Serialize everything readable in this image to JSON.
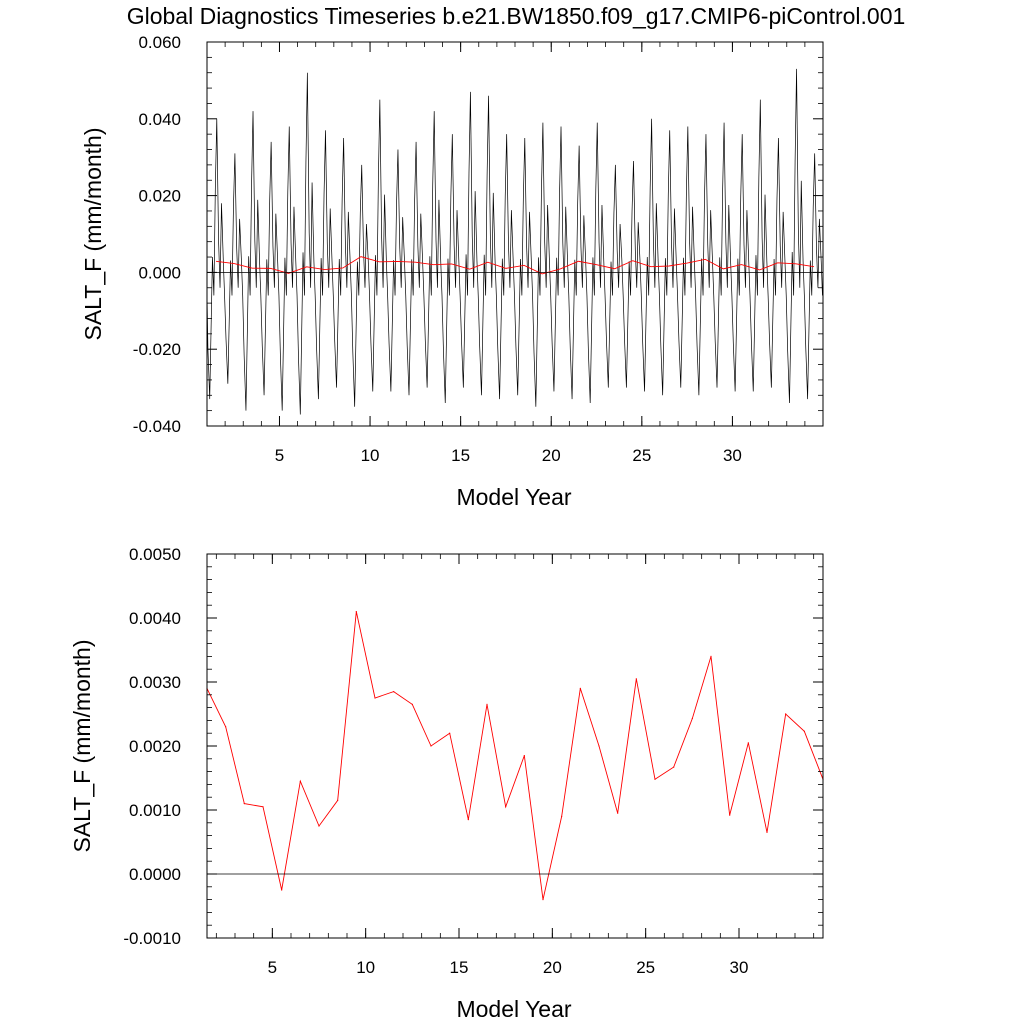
{
  "title": "Global Diagnostics Timeseries b.e21.BW1850.f09_g17.CMIP6-piControl.001",
  "colors": {
    "annual": "#ff0000",
    "monthly": "#000000",
    "zero_line": "#000000",
    "frame": "#000000"
  },
  "chart_data": [
    {
      "type": "line",
      "panel": "top",
      "xlabel": "Model Year",
      "ylabel": "SALT_F (mm/month)",
      "xlim": [
        1,
        35
      ],
      "ylim": [
        -0.04,
        0.06
      ],
      "xticks": [
        5,
        10,
        15,
        20,
        25,
        30
      ],
      "xtick_labels": [
        "5",
        "10",
        "15",
        "20",
        "25",
        "30"
      ],
      "yticks": [
        -0.04,
        -0.02,
        0.0,
        0.02,
        0.04,
        0.06
      ],
      "ytick_labels": [
        "-0.040",
        "-0.020",
        "0.000",
        "0.020",
        "0.040",
        "0.060"
      ],
      "reference_line": 0.0,
      "monthly_series": {
        "description_source": "black monthly line oscillating with seasonal cycle",
        "peaks": [
          0.04,
          0.031,
          0.042,
          0.034,
          0.038,
          0.052,
          0.037,
          0.035,
          0.028,
          0.045,
          0.032,
          0.034,
          0.042,
          0.036,
          0.047,
          0.046,
          0.036,
          0.035,
          0.039,
          0.038,
          0.033,
          0.039,
          0.028,
          0.029,
          0.04,
          0.037,
          0.038,
          0.036,
          0.039,
          0.036,
          0.045,
          0.035,
          0.053,
          0.031,
          0.041
        ],
        "troughs": [
          -0.033,
          -0.029,
          -0.036,
          -0.032,
          -0.036,
          -0.037,
          -0.033,
          -0.03,
          -0.035,
          -0.031,
          -0.031,
          -0.032,
          -0.03,
          -0.034,
          -0.03,
          -0.032,
          -0.033,
          -0.032,
          -0.035,
          -0.031,
          -0.033,
          -0.034,
          -0.03,
          -0.03,
          -0.031,
          -0.032,
          -0.03,
          -0.032,
          -0.03,
          -0.031,
          -0.031,
          -0.03,
          -0.034,
          -0.033,
          -0.038
        ]
      },
      "series": [
        {
          "values_x": [
            1.5,
            2.5,
            3.5,
            4.5,
            5.5,
            6.5,
            7.5,
            8.5,
            9.5,
            10.5,
            11.5,
            12.5,
            13.5,
            14.5,
            15.5,
            16.5,
            17.5,
            18.5,
            19.5,
            20.5,
            21.5,
            22.5,
            23.5,
            24.5,
            25.5,
            26.5,
            27.5,
            28.5,
            29.5,
            30.5,
            31.5,
            32.5,
            33.5,
            34.5
          ],
          "values": [
            0.0029,
            0.0023,
            0.0011,
            0.00105,
            -0.00025,
            0.00145,
            0.00075,
            0.00115,
            0.0041,
            0.00275,
            0.00285,
            0.00265,
            0.002,
            0.0022,
            0.00085,
            0.00265,
            0.00105,
            0.00185,
            -0.0004,
            0.0009,
            0.0029,
            0.002,
            0.00095,
            0.00305,
            0.00148,
            0.00167,
            0.00243,
            0.0034,
            0.00092,
            0.00205,
            0.00065,
            0.0025,
            0.00223,
            0.00148
          ]
        }
      ]
    },
    {
      "type": "line",
      "panel": "bottom",
      "xlabel": "Model Year",
      "ylabel": "SALT_F (mm/month)",
      "xlim": [
        1.5,
        34.5
      ],
      "ylim": [
        -0.001,
        0.005
      ],
      "xticks": [
        5,
        10,
        15,
        20,
        25,
        30
      ],
      "xtick_labels": [
        "5",
        "10",
        "15",
        "20",
        "25",
        "30"
      ],
      "yticks": [
        -0.001,
        0.0,
        0.001,
        0.002,
        0.003,
        0.004,
        0.005
      ],
      "ytick_labels": [
        "-0.0010",
        "0.0000",
        "0.0010",
        "0.0020",
        "0.0030",
        "0.0040",
        "0.0050"
      ],
      "reference_line": 0.0,
      "series": [
        {
          "x": [
            1.5,
            2.5,
            3.5,
            4.5,
            5.5,
            6.5,
            7.5,
            8.5,
            9.5,
            10.5,
            11.5,
            12.5,
            13.5,
            14.5,
            15.5,
            16.5,
            17.5,
            18.5,
            19.5,
            20.5,
            21.5,
            22.5,
            23.5,
            24.5,
            25.5,
            26.5,
            27.5,
            28.5,
            29.5,
            30.5,
            31.5,
            32.5,
            33.5,
            34.5
          ],
          "values": [
            0.0029,
            0.0023,
            0.0011,
            0.00105,
            -0.00025,
            0.00145,
            0.00075,
            0.00115,
            0.0041,
            0.00275,
            0.00285,
            0.00265,
            0.002,
            0.0022,
            0.00085,
            0.00265,
            0.00105,
            0.00185,
            -0.0004,
            0.0009,
            0.0029,
            0.002,
            0.00095,
            0.00305,
            0.00148,
            0.00167,
            0.00243,
            0.0034,
            0.00092,
            0.00205,
            0.00065,
            0.0025,
            0.00223,
            0.00148
          ]
        }
      ]
    }
  ]
}
